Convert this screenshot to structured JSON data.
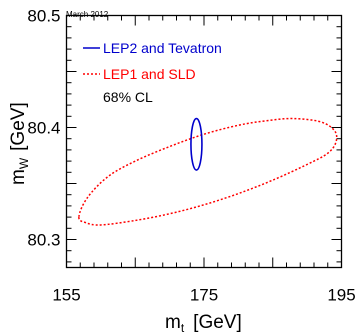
{
  "chart_data": {
    "type": "contour",
    "note": "March 2012",
    "xlabel": {
      "main": "m",
      "sub": "t",
      "unit": "[GeV]"
    },
    "ylabel": {
      "main": "m",
      "sub": "W",
      "unit": "[GeV]"
    },
    "xlim": [
      155,
      195
    ],
    "ylim": [
      80.275,
      80.5
    ],
    "x_ticks": [
      "155",
      "175",
      "195"
    ],
    "y_ticks": [
      "80.3",
      "80.4",
      "80.5"
    ],
    "legend_position": "top-left",
    "confidence_label": "68% CL",
    "series": [
      {
        "name": "LEP2 and Tevatron",
        "style": "solid",
        "color": "#0000cc",
        "ellipse": {
          "center": [
            173.9,
            80.385
          ],
          "x_extent": [
            173.1,
            174.7
          ],
          "y_extent": [
            80.362,
            80.408
          ]
        }
      },
      {
        "name": "LEP1 and SLD",
        "style": "dotted",
        "color": "#ff0000",
        "contour_points": [
          [
            156.8,
            80.32
          ],
          [
            157.8,
            80.315
          ],
          [
            160.0,
            80.313
          ],
          [
            165.0,
            80.317
          ],
          [
            170.0,
            80.323
          ],
          [
            175.0,
            80.331
          ],
          [
            180.0,
            80.341
          ],
          [
            185.0,
            80.353
          ],
          [
            190.0,
            80.367
          ],
          [
            193.0,
            80.377
          ],
          [
            194.2,
            80.387
          ],
          [
            194.0,
            80.397
          ],
          [
            192.0,
            80.405
          ],
          [
            188.0,
            80.408
          ],
          [
            184.0,
            80.406
          ],
          [
            180.0,
            80.402
          ],
          [
            175.0,
            80.394
          ],
          [
            170.0,
            80.383
          ],
          [
            165.0,
            80.37
          ],
          [
            161.0,
            80.356
          ],
          [
            158.0,
            80.337
          ],
          [
            156.8,
            80.32
          ]
        ]
      }
    ]
  }
}
